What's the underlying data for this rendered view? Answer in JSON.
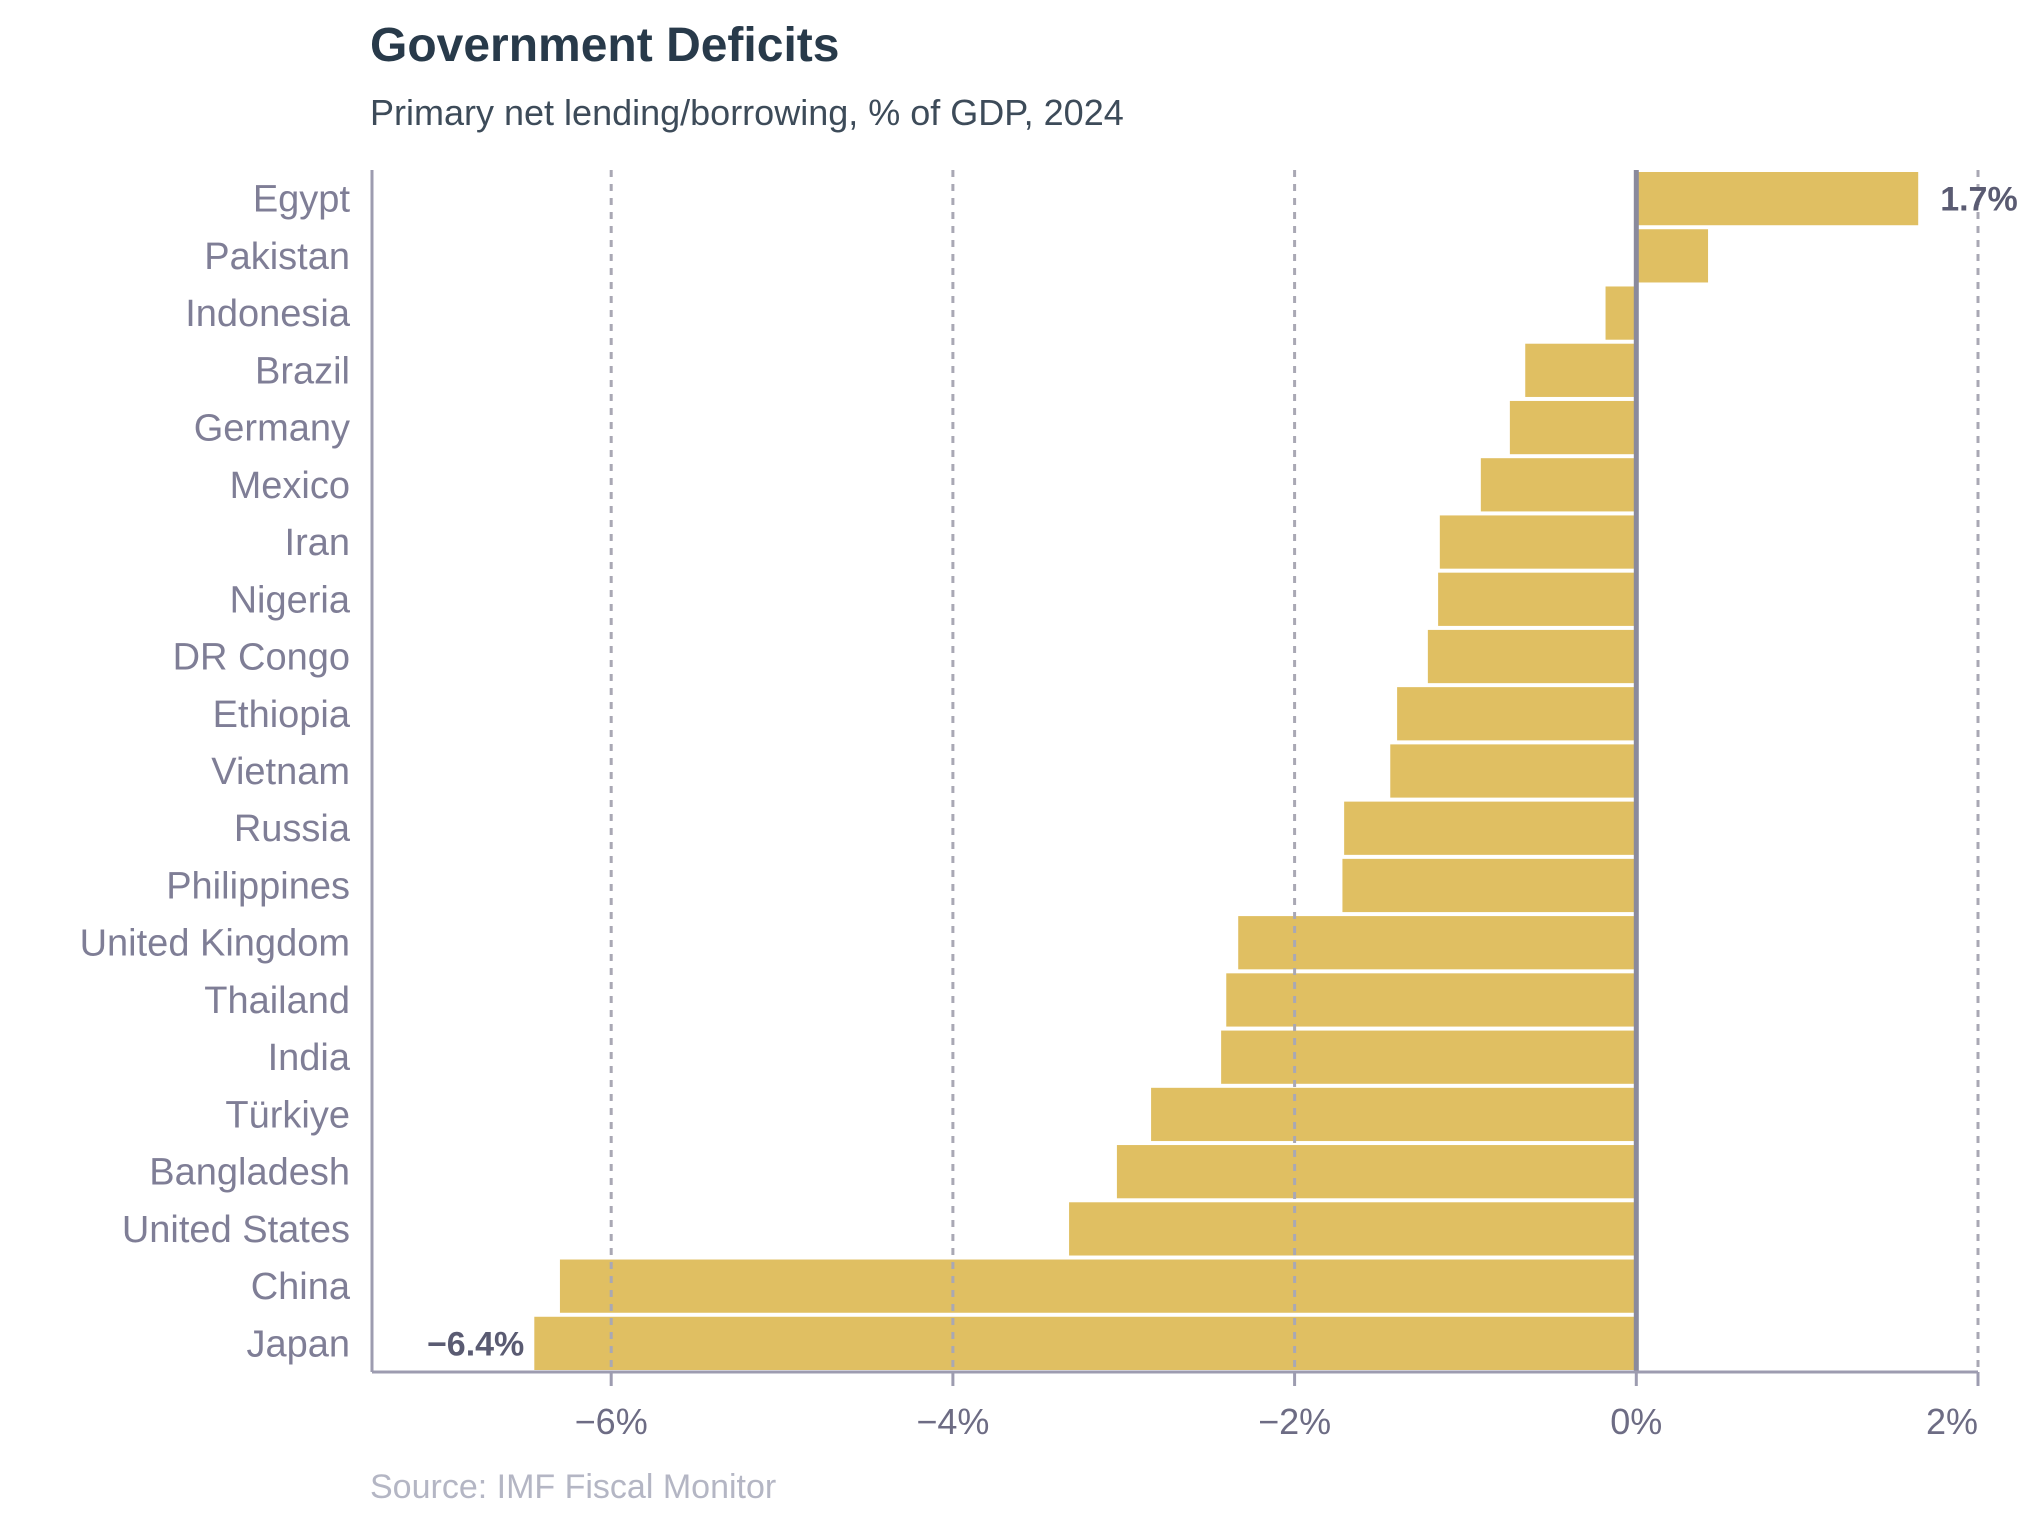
{
  "chart_data": {
    "type": "bar",
    "orientation": "horizontal",
    "title": "Government Deficits",
    "subtitle": "Primary net lending/borrowing, % of GDP, 2024",
    "source": "Source: IMF Fiscal Monitor",
    "categories": [
      "Egypt",
      "Pakistan",
      "Indonesia",
      "Brazil",
      "Germany",
      "Mexico",
      "Iran",
      "Nigeria",
      "DR Congo",
      "Ethiopia",
      "Vietnam",
      "Russia",
      "Philippines",
      "United Kingdom",
      "Thailand",
      "India",
      "Türkiye",
      "Bangladesh",
      "United States",
      "China",
      "Japan"
    ],
    "values": [
      1.65,
      0.42,
      -0.18,
      -0.65,
      -0.74,
      -0.91,
      -1.15,
      -1.16,
      -1.22,
      -1.4,
      -1.44,
      -1.71,
      -1.72,
      -2.33,
      -2.4,
      -2.43,
      -2.84,
      -3.04,
      -3.32,
      -6.3,
      -6.45
    ],
    "data_labels": [
      {
        "category": "Egypt",
        "text": "1.7%"
      },
      {
        "category": "Japan",
        "text": "−6.4%"
      }
    ],
    "xlim": [
      -7.4,
      2
    ],
    "xticks": [
      -6,
      -4,
      -2,
      0,
      2
    ],
    "xtick_labels": [
      "−6%",
      "−4%",
      "−2%",
      "0%",
      "2%"
    ],
    "xlabel": "",
    "ylabel": "",
    "grid": "vertical dashed",
    "colors": {
      "bar": "#e0bf62",
      "grid": "#a9a8b4",
      "axis": "#9d9cb0",
      "zero_line": "#8a8a9c",
      "title": "#283a4a",
      "subtitle": "#3d4b59",
      "category_text": "#7f7e96",
      "tick_text": "#6d6c84",
      "source_text": "#b4b6c4"
    }
  }
}
